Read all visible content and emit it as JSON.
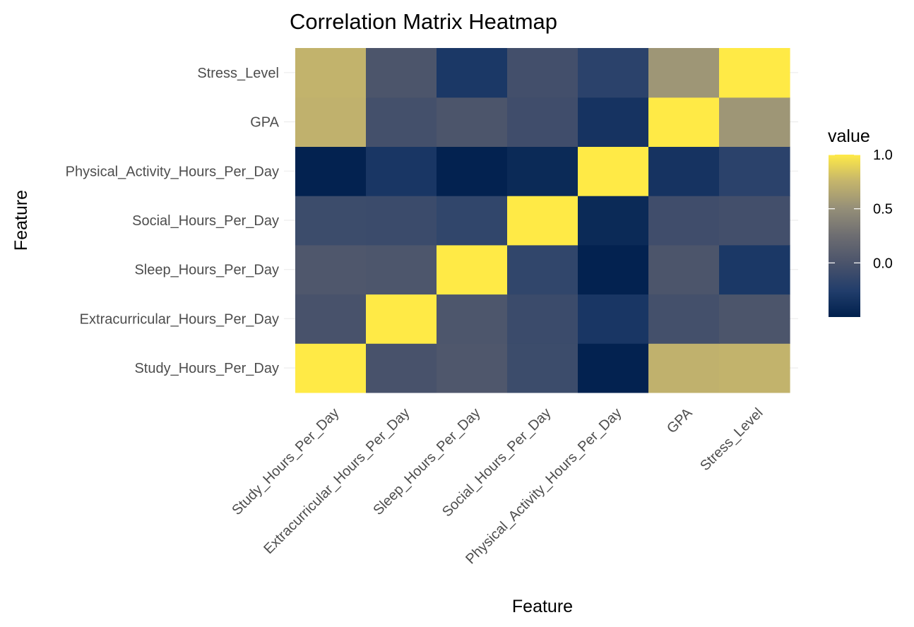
{
  "chart_data": {
    "type": "heatmap",
    "title": "Correlation Matrix Heatmap",
    "xlabel": "Feature",
    "ylabel": "Feature",
    "x_categories": [
      "Study_Hours_Per_Day",
      "Extracurricular_Hours_Per_Day",
      "Sleep_Hours_Per_Day",
      "Social_Hours_Per_Day",
      "Physical_Activity_Hours_Per_Day",
      "GPA",
      "Stress_Level"
    ],
    "y_categories": [
      "Study_Hours_Per_Day",
      "Extracurricular_Hours_Per_Day",
      "Sleep_Hours_Per_Day",
      "Social_Hours_Per_Day",
      "Physical_Activity_Hours_Per_Day",
      "GPA",
      "Stress_Level"
    ],
    "values": [
      [
        1.0,
        -0.02,
        0.03,
        -0.09,
        -0.48,
        0.73,
        0.74
      ],
      [
        -0.02,
        1.0,
        0.02,
        -0.1,
        -0.32,
        -0.04,
        0.01
      ],
      [
        0.03,
        0.02,
        1.0,
        -0.16,
        -0.48,
        0.01,
        -0.3
      ],
      [
        -0.09,
        -0.1,
        -0.16,
        1.0,
        -0.42,
        -0.07,
        -0.05
      ],
      [
        -0.48,
        -0.32,
        -0.48,
        -0.42,
        1.0,
        -0.34,
        -0.2
      ],
      [
        0.73,
        -0.04,
        0.01,
        -0.07,
        -0.34,
        1.0,
        0.55
      ],
      [
        0.74,
        0.01,
        -0.3,
        -0.05,
        -0.2,
        0.55,
        1.0
      ]
    ],
    "legend": {
      "title": "value",
      "ticks": [
        1.0,
        0.5,
        0.0
      ],
      "tick_labels": [
        "1.0",
        "0.5",
        "0.0"
      ],
      "min": -0.5,
      "max": 1.0,
      "placement": "right"
    },
    "colormap": "cividis",
    "grid": true
  }
}
